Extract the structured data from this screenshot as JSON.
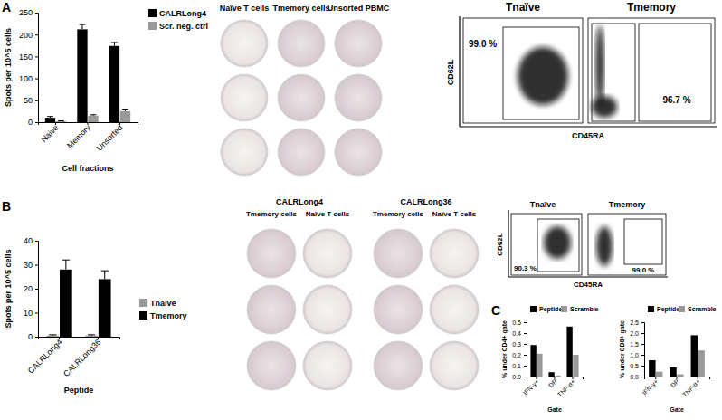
{
  "panel_labels": [
    "A",
    "B",
    "C"
  ],
  "chart_data": [
    {
      "type": "bar",
      "x_label": "Cell fractions",
      "y_label": "Spots per 10^5 cells",
      "categories": [
        "Naive",
        "Memory",
        "Unsorted"
      ],
      "series": [
        {
          "name": "CALRLong4",
          "color": "#000000",
          "values": [
            10,
            212,
            174
          ],
          "errors": [
            3,
            11,
            8
          ]
        },
        {
          "name": "Scr. neg. ctrl",
          "color": "#999999",
          "values": [
            2,
            15,
            25
          ],
          "errors": [
            1,
            2,
            5
          ]
        }
      ],
      "ylim": [
        0,
        250
      ],
      "yticks": [
        0,
        50,
        100,
        150,
        200,
        250
      ],
      "legend": "right"
    },
    {
      "type": "bar",
      "x_label": "Peptide",
      "y_label": "Spots per 10^5 cells",
      "categories": [
        "CALRLong4",
        "CALRLong36"
      ],
      "series": [
        {
          "name": "Tnaïve",
          "color": "#999999",
          "values": [
            0.5,
            0.5
          ],
          "errors": [
            0.3,
            0.3
          ]
        },
        {
          "name": "Tmemory",
          "color": "#000000",
          "values": [
            28,
            24
          ],
          "errors": [
            4,
            3.5
          ]
        }
      ],
      "ylim": [
        0,
        40
      ],
      "yticks": [
        0,
        10,
        20,
        30,
        40
      ],
      "legend": "right"
    },
    {
      "type": "bar",
      "x_label": "Gate",
      "y_label": "% under CD4+ gate",
      "categories": [
        "IFN-γ+",
        "DP",
        "TNF-α+"
      ],
      "series": [
        {
          "name": "Peptide",
          "color": "#000000",
          "values": [
            0.29,
            0.04,
            0.46
          ]
        },
        {
          "name": "Scramble",
          "color": "#999999",
          "values": [
            0.21,
            0.01,
            0.2
          ]
        }
      ],
      "ylim": [
        0,
        0.5
      ],
      "yticks": [
        {
          "value": 0,
          "label": "0.0"
        },
        0.1,
        0.2,
        0.3,
        0.4,
        0.5
      ],
      "legend": "top"
    },
    {
      "type": "bar",
      "x_label": "Gate",
      "y_label": "% under CD8+ gate",
      "categories": [
        "IFN-γ+",
        "DP",
        "TNF-α+"
      ],
      "series": [
        {
          "name": "Peptide",
          "color": "#000000",
          "values": [
            0.75,
            0.42,
            1.9
          ]
        },
        {
          "name": "Scramble",
          "color": "#999999",
          "values": [
            0.22,
            0.1,
            1.2
          ]
        }
      ],
      "ylim": [
        0,
        2.5
      ],
      "yticks": [
        {
          "value": 0,
          "label": "0.0"
        },
        0.5,
        {
          "value": 1,
          "label": "1.0"
        },
        1.5,
        {
          "value": 2,
          "label": "2.0"
        },
        2.5
      ],
      "legend": "top"
    }
  ],
  "elispot_a": {
    "columns": [
      "Naïve T cells",
      "Tmemory cells",
      "Unsorted PBMC"
    ]
  },
  "elispot_b": {
    "groups": [
      {
        "title": "CALRLong4",
        "columns": [
          "Tmemory cells",
          "Naïve T cells"
        ]
      },
      {
        "title": "CALRLong36",
        "columns": [
          "Tmemory cells",
          "Naïve T cells"
        ]
      }
    ]
  },
  "flow_a": {
    "x_label": "CD45RA",
    "y_label": "CD62L",
    "plots": [
      {
        "title": "Tnaïve",
        "gate_label": "99.0 %"
      },
      {
        "title": "Tmemory",
        "gate_label": "96.7 %"
      }
    ]
  },
  "flow_b": {
    "x_label": "CD45RA",
    "y_label": "CD62L",
    "plots": [
      {
        "title": "Tnaïve",
        "gate_label": "90.3 %"
      },
      {
        "title": "Tmemory",
        "gate_label": "99.0 %"
      }
    ]
  }
}
